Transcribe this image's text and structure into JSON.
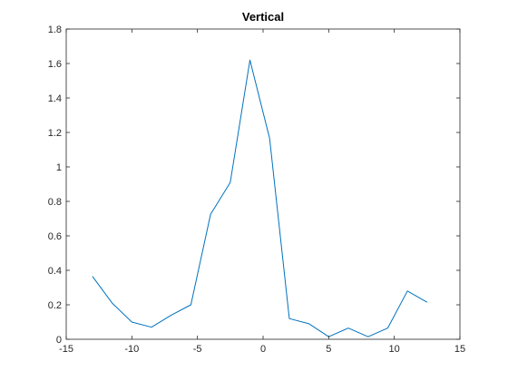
{
  "chart_data": {
    "type": "line",
    "title": "Vertical",
    "xlabel": "",
    "ylabel": "",
    "xlim": [
      -15,
      15
    ],
    "ylim": [
      0,
      1.8
    ],
    "xticks": [
      -15,
      -10,
      -5,
      0,
      5,
      10,
      15
    ],
    "yticks": [
      0,
      0.2,
      0.4,
      0.6,
      0.8,
      1,
      1.2,
      1.4,
      1.6,
      1.8
    ],
    "xtick_labels": [
      "-15",
      "-10",
      "-5",
      "0",
      "5",
      "10",
      "15"
    ],
    "ytick_labels": [
      "0",
      "0.2",
      "0.4",
      "0.6",
      "0.8",
      "1",
      "1.2",
      "1.4",
      "1.6",
      "1.8"
    ],
    "grid": false,
    "box": true,
    "series": [
      {
        "color": "#0072BD",
        "x": [
          -13,
          -11.5,
          -10,
          -8.5,
          -7,
          -5.5,
          -4,
          -2.5,
          -1,
          0.5,
          2,
          3.5,
          5,
          6.5,
          8,
          9.5,
          11,
          12.5
        ],
        "y": [
          0.365,
          0.21,
          0.1,
          0.07,
          0.14,
          0.2,
          0.725,
          0.91,
          1.62,
          1.165,
          0.12,
          0.09,
          0.015,
          0.065,
          0.015,
          0.065,
          0.28,
          0.215
        ]
      }
    ]
  }
}
